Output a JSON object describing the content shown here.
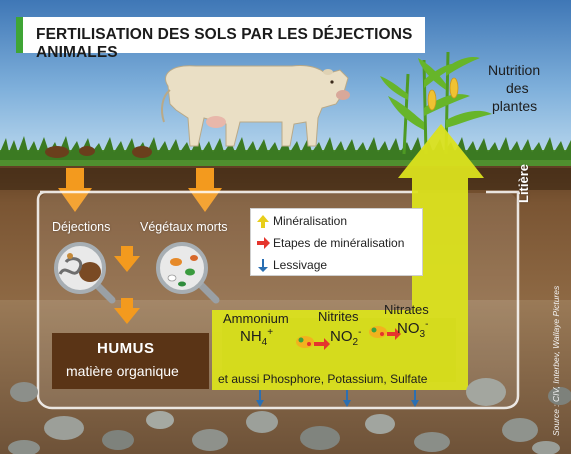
{
  "title": "FERTILISATION DES SOLS PAR LES DÉJECTIONS ANIMALES",
  "labels": {
    "nutrition": [
      "Nutrition",
      "des",
      "plantes"
    ],
    "litiere": "Litière",
    "dejections": "Déjections",
    "vegetaux": "Végétaux morts",
    "humus": "HUMUS",
    "humus_sub": "matière organique",
    "ammonium": "Ammonium",
    "ammonium_formula": "NH",
    "ammonium_sub": "4",
    "ammonium_sup": "+",
    "nitrites": "Nitrites",
    "nitrites_formula": "NO",
    "nitrites_sub": "2",
    "nitrites_sup": "-",
    "nitrates": "Nitrates",
    "nitrates_formula": "NO",
    "nitrates_sub": "3",
    "nitrates_sup": "-",
    "also": "et aussi Phosphore, Potassium, Sulfate",
    "source": "Source : CIV, Interbev, Wallaye Pictures"
  },
  "legend": [
    {
      "label": "Minéralisation",
      "icon": "yellow-up-arrow-icon",
      "color": "#e8ce1a"
    },
    {
      "label": "Etapes de minéralisation",
      "icon": "red-right-arrow-icon",
      "color": "#e5352d"
    },
    {
      "label": "Lessivage",
      "icon": "blue-down-arrow-icon",
      "color": "#2a6fb3"
    }
  ],
  "colors": {
    "sky_top": "#3f77b6",
    "sky_bottom": "#a9cde9",
    "grass": "#4f8f2e",
    "soil": "#6b4a2b",
    "mineral_flow": "#dbe21e",
    "orange_arrow": "#f39a1e",
    "humus_box": "#5a3416",
    "title_accent": "#3fa535"
  }
}
